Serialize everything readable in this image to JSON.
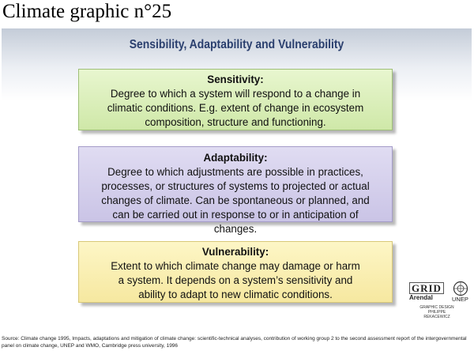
{
  "page": {
    "heading": "Climate graphic n°25"
  },
  "diagram": {
    "title": "Sensibility, Adaptability and Vulnerability",
    "boxes": [
      {
        "term": "Sensitivity:",
        "description": "Degree to which a system will respond to a change in climatic conditions. E.g. extent of change in ecosystem composition, structure and functioning.",
        "color": "#d8eebb"
      },
      {
        "term": "Adaptability:",
        "description": "Degree to which adjustments are possible in practices, processes, or structures of systems to projected or actual changes of climate. Can be spontaneous or planned, and can be carried out in response to or in anticipation of changes.",
        "color": "#d4cfec"
      },
      {
        "term": "Vulnerability:",
        "description": "Extent to which climate change may damage or harm a system. It depends on a system’s sensitivity and ability to adapt to new climatic conditions.",
        "color": "#fbefb4"
      }
    ]
  },
  "logos": {
    "grid": "GRID",
    "grid_sub": "Arendal",
    "unep": "UNEP",
    "credit": "GRAPHIC DESIGN PHILIPPE REKACEWICZ",
    "unep_emblem_icon": "un-emblem-icon"
  },
  "footer": {
    "source": "Source: Climate change 1995, Impacts, adaptations and mitigation of climate change: scientific-technical analyses, contribution of working group 2 to the second assessment report of the intergovernmental panel on climate change, UNEP and WMO, Cambridge press university, 1996"
  }
}
